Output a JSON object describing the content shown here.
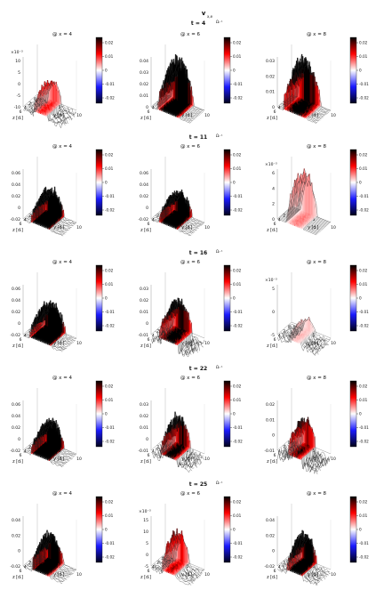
{
  "figure": {
    "title": "v",
    "title_sub": "x,e"
  },
  "chart_data": {
    "type": "surface3d-grid",
    "rows": [
      {
        "time_label": "t = 4",
        "panels": [
          {
            "label": "@ x = 4",
            "z_ticks": [
              "10",
              "5",
              "0",
              "-5",
              "-10"
            ],
            "z_exp": "×10⁻³",
            "cb_ticks": [
              "0.02",
              "0.01",
              "0",
              "-0.01",
              "-0.02"
            ],
            "peak": 0.011,
            "dip": -0.004,
            "band": 0.35
          },
          {
            "label": "@ x = 6",
            "z_ticks": [
              "0.04",
              "0.03",
              "0.02",
              "0.01",
              "0"
            ],
            "z_exp": "",
            "cb_ticks": [
              "0.02",
              "0.01",
              "0",
              "-0.01",
              "-0.02"
            ],
            "peak": 0.04,
            "dip": -0.001,
            "band": 0.55
          },
          {
            "label": "@ x = 8",
            "z_ticks": [
              "0.03",
              "0.02",
              "0.01",
              "0"
            ],
            "z_exp": "",
            "cb_ticks": [
              "0.02",
              "0.01",
              "0",
              "-0.01",
              "-0.02"
            ],
            "peak": 0.03,
            "dip": -0.001,
            "band": 0.6
          }
        ]
      },
      {
        "time_label": "t = 11",
        "panels": [
          {
            "label": "@ x = 4",
            "z_ticks": [
              "0.06",
              "0.04",
              "0.02",
              "0",
              "-0.02"
            ],
            "z_exp": "",
            "cb_ticks": [
              "0.02",
              "0.01",
              "0",
              "-0.01",
              "-0.02"
            ],
            "peak": 0.05,
            "dip": -0.005,
            "band": 0.5
          },
          {
            "label": "@ x = 6",
            "z_ticks": [
              "0.06",
              "0.04",
              "0.02",
              "0",
              "-0.02"
            ],
            "z_exp": "",
            "cb_ticks": [
              "0.02",
              "0.01",
              "0",
              "-0.01",
              "-0.02"
            ],
            "peak": 0.045,
            "dip": -0.004,
            "band": 0.5
          },
          {
            "label": "@ x = 8",
            "z_ticks": [
              "6",
              "4",
              "2",
              "0"
            ],
            "z_exp": "×10⁻³",
            "cb_ticks": [
              "0.02",
              "0.01",
              "0",
              "-0.01",
              "-0.02"
            ],
            "peak": 0.006,
            "dip": 0.0,
            "band": 0.4
          }
        ]
      },
      {
        "time_label": "t = 16",
        "panels": [
          {
            "label": "@ x = 4",
            "z_ticks": [
              "0.06",
              "0.04",
              "0.02",
              "0",
              "-0.02"
            ],
            "z_exp": "",
            "cb_ticks": [
              "0.02",
              "0.01",
              "0",
              "-0.01",
              "-0.02"
            ],
            "peak": 0.055,
            "dip": -0.006,
            "band": 0.55
          },
          {
            "label": "@ x = 6",
            "z_ticks": [
              "0.03",
              "0.02",
              "0.01",
              "0",
              "-0.01"
            ],
            "z_exp": "",
            "cb_ticks": [
              "0.02",
              "0.01",
              "0",
              "-0.01",
              "-0.02"
            ],
            "peak": 0.028,
            "dip": -0.012,
            "band": 0.5
          },
          {
            "label": "@ x = 8",
            "z_ticks": [
              "5",
              "0",
              "-5"
            ],
            "z_exp": "×10⁻³",
            "cb_ticks": [
              "0.02",
              "0.01",
              "0",
              "-0.01",
              "-0.02"
            ],
            "peak": 0.003,
            "dip": -0.002,
            "band": 0.3
          }
        ]
      },
      {
        "time_label": "t = 22",
        "panels": [
          {
            "label": "@ x = 4",
            "z_ticks": [
              "0.06",
              "0.04",
              "0.02",
              "0",
              "-0.02"
            ],
            "z_exp": "",
            "cb_ticks": [
              "0.02",
              "0.01",
              "0",
              "-0.01",
              "-0.02"
            ],
            "peak": 0.05,
            "dip": -0.005,
            "band": 0.5
          },
          {
            "label": "@ x = 6",
            "z_ticks": [
              "0.03",
              "0.02",
              "0.01",
              "0",
              "-0.01"
            ],
            "z_exp": "",
            "cb_ticks": [
              "0.02",
              "0.01",
              "0",
              "-0.01",
              "-0.02"
            ],
            "peak": 0.028,
            "dip": -0.01,
            "band": 0.4
          },
          {
            "label": "@ x = 8",
            "z_ticks": [
              "0.02",
              "0.01",
              "0",
              "-0.01"
            ],
            "z_exp": "",
            "cb_ticks": [
              "0.02",
              "0.01",
              "0",
              "-0.01",
              "-0.02"
            ],
            "peak": 0.02,
            "dip": -0.01,
            "band": 0.35
          }
        ]
      },
      {
        "time_label": "t = 25",
        "panels": [
          {
            "label": "@ x = 4",
            "z_ticks": [
              "0.04",
              "0.02",
              "0",
              "-0.02"
            ],
            "z_exp": "",
            "cb_ticks": [
              "0.02",
              "0.01",
              "0",
              "-0.01",
              "-0.02"
            ],
            "peak": 0.04,
            "dip": -0.004,
            "band": 0.45
          },
          {
            "label": "@ x = 6",
            "z_ticks": [
              "15",
              "10",
              "5",
              "0",
              "-5"
            ],
            "z_exp": "×10⁻³",
            "cb_ticks": [
              "0.02",
              "0.01",
              "0",
              "-0.01",
              "-0.02"
            ],
            "peak": 0.014,
            "dip": -0.003,
            "band": 0.35
          },
          {
            "label": "@ x = 8",
            "z_ticks": [
              "0.04",
              "0.02",
              "0",
              "-0.02"
            ],
            "z_exp": "",
            "cb_ticks": [
              "0.02",
              "0.01",
              "0",
              "-0.01",
              "-0.02"
            ],
            "peak": 0.04,
            "dip": -0.01,
            "band": 0.4
          }
        ]
      }
    ],
    "axes": {
      "x_label": "z [dᵢ]",
      "y_label": "y [dᵢ]",
      "x_ticks": [
        "6",
        "4",
        "2",
        "0"
      ],
      "y_ticks": [
        "0",
        "5",
        "10"
      ]
    },
    "time_unit": "Ωᵢ⁻¹",
    "colormap": {
      "high": "#000000",
      "mid_high": "#ff0000",
      "zero": "#ffffff",
      "mid_low": "#1a1aff",
      "low": "#000018"
    },
    "colorbar_range": [
      -0.02,
      0.02
    ]
  }
}
